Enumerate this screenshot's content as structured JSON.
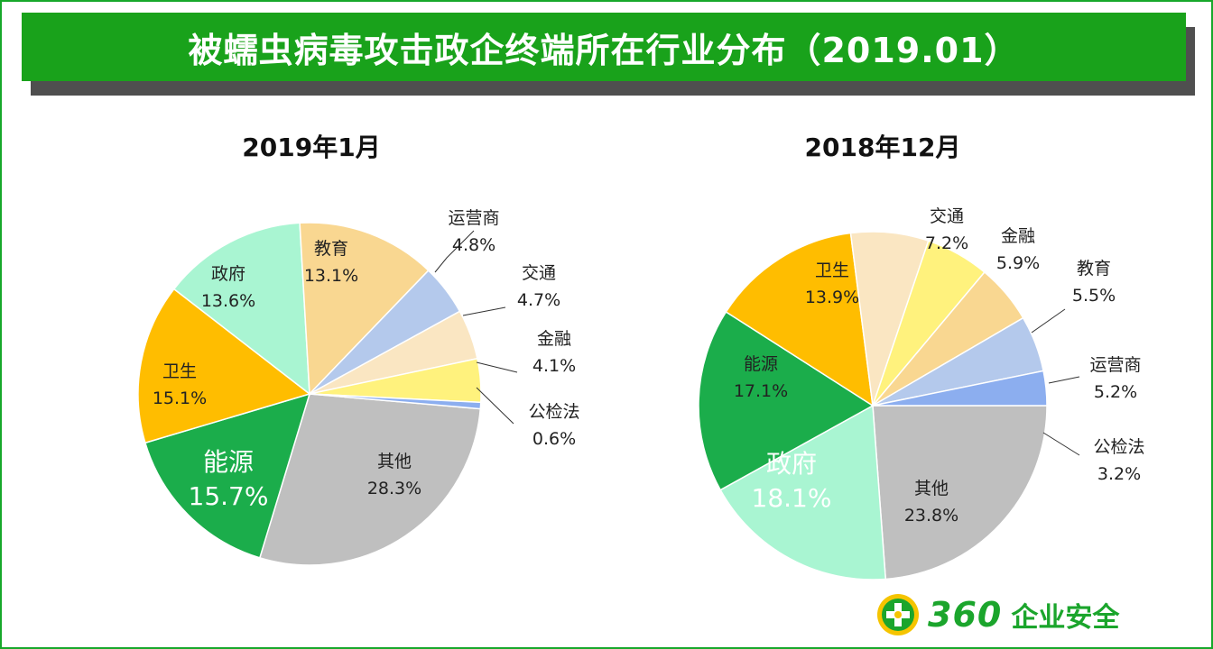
{
  "header": {
    "title": "被蠕虫病毒攻击政企终端所在行业分布（2019.01）"
  },
  "colors": {
    "frame": "#17a82a",
    "title_bg": "#19a21b",
    "title_shadow": "#4f4f4f",
    "slice_colors": {
      "其他": "#bfbfbf",
      "能源": "#1bad4b",
      "卫生": "#ffbd00",
      "政府": "#a9f5d2",
      "教育": "#f9d791",
      "运营商": "#b4c9ec",
      "交通": "#fae6c2",
      "金融": "#fff27d",
      "公检法": "#8caeef"
    }
  },
  "chart_data": [
    {
      "type": "pie",
      "title": "2019年1月",
      "slices": [
        {
          "label": "其他",
          "value": 28.3,
          "value_text": "28.3%"
        },
        {
          "label": "能源",
          "value": 15.7,
          "value_text": "15.7%"
        },
        {
          "label": "卫生",
          "value": 15.1,
          "value_text": "15.1%"
        },
        {
          "label": "政府",
          "value": 13.6,
          "value_text": "13.6%"
        },
        {
          "label": "教育",
          "value": 13.1,
          "value_text": "13.1%"
        },
        {
          "label": "运营商",
          "value": 4.8,
          "value_text": "4.8%"
        },
        {
          "label": "交通",
          "value": 4.7,
          "value_text": "4.7%"
        },
        {
          "label": "金融",
          "value": 4.1,
          "value_text": "4.1%"
        },
        {
          "label": "公检法",
          "value": 0.6,
          "value_text": "0.6%"
        }
      ]
    },
    {
      "type": "pie",
      "title": "2018年12月",
      "slices": [
        {
          "label": "其他",
          "value": 23.8,
          "value_text": "23.8%"
        },
        {
          "label": "政府",
          "value": 18.1,
          "value_text": "18.1%"
        },
        {
          "label": "能源",
          "value": 17.1,
          "value_text": "17.1%"
        },
        {
          "label": "卫生",
          "value": 13.9,
          "value_text": "13.9%"
        },
        {
          "label": "交通",
          "value": 7.2,
          "value_text": "7.2%"
        },
        {
          "label": "金融",
          "value": 5.9,
          "value_text": "5.9%"
        },
        {
          "label": "教育",
          "value": 5.5,
          "value_text": "5.5%"
        },
        {
          "label": "运营商",
          "value": 5.2,
          "value_text": "5.2%"
        },
        {
          "label": "公检法",
          "value": 3.2,
          "value_text": "3.2%"
        }
      ]
    }
  ],
  "logo": {
    "number": "360",
    "text": "企业安全"
  }
}
